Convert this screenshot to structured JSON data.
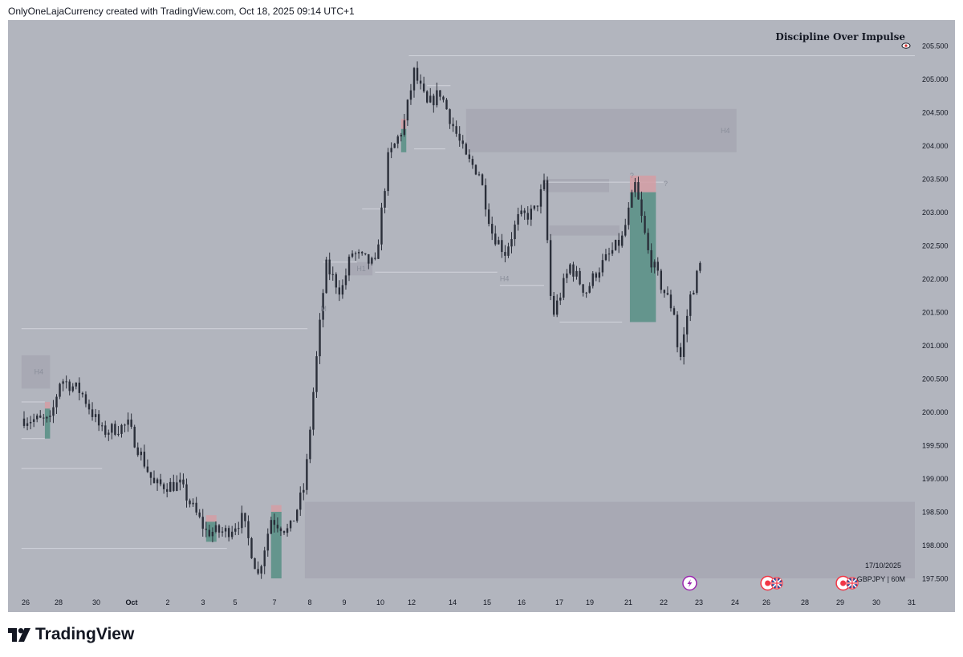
{
  "header": {
    "text": "OnlyOneLajaCurrency created with TradingView.com, Oct 18, 2025 09:14 UTC+1"
  },
  "watermark": "Discipline Over Impulse",
  "symbol_info": {
    "date": "17/10/2025",
    "symbol": "GBPJPY | 60M"
  },
  "footer": {
    "brand": "TradingView"
  },
  "colors": {
    "background": "#b2b5be",
    "candle": "#2a2e39",
    "zone": "#a4a6b0",
    "line": "#d1d4dc",
    "label": "#8a8e9a",
    "profit": "#5b9187",
    "loss": "#d49da4",
    "event_red": "#f23645",
    "event_purple": "#9c27b0"
  },
  "icons": {
    "eye": "eye-icon",
    "lightning": "lightning-icon",
    "event": "red-dot-event-icon",
    "flag": "uk-flag-icon",
    "logo": "tradingview-logo-icon"
  },
  "chart_data": {
    "type": "candlestick",
    "title": "",
    "xlabel": "",
    "ylabel": "",
    "ylim": [
      197.4,
      205.8
    ],
    "y_ticks": [
      "197.500",
      "198.000",
      "198.500",
      "199.000",
      "199.500",
      "200.000",
      "200.500",
      "201.000",
      "201.500",
      "202.000",
      "202.500",
      "203.000",
      "203.500",
      "204.000",
      "204.500",
      "205.000",
      "205.500"
    ],
    "x_ticks": [
      "26",
      "28",
      "30",
      "Oct",
      "2",
      "3",
      "5",
      "7",
      "8",
      "9",
      "10",
      "12",
      "14",
      "15",
      "16",
      "17",
      "19",
      "21",
      "22",
      "23",
      "24",
      "26",
      "28",
      "29",
      "30",
      "31"
    ],
    "price_path": [
      {
        "d": 0,
        "p": 199.9
      },
      {
        "d": 1,
        "p": 199.85
      },
      {
        "d": 1.4,
        "p": 200.5
      },
      {
        "d": 2.2,
        "p": 200.3
      },
      {
        "d": 3,
        "p": 199.7
      },
      {
        "d": 4,
        "p": 199.8
      },
      {
        "d": 5,
        "p": 198.9
      },
      {
        "d": 6,
        "p": 198.9
      },
      {
        "d": 7,
        "p": 198.2
      },
      {
        "d": 7.8,
        "p": 198.2
      },
      {
        "d": 8.4,
        "p": 198.4
      },
      {
        "d": 9,
        "p": 197.55
      },
      {
        "d": 9.5,
        "p": 198.4
      },
      {
        "d": 10.2,
        "p": 198.2
      },
      {
        "d": 10.8,
        "p": 198.9
      },
      {
        "d": 11.1,
        "p": 200.2
      },
      {
        "d": 11.6,
        "p": 202.2
      },
      {
        "d": 12.2,
        "p": 201.8
      },
      {
        "d": 12.6,
        "p": 202.4
      },
      {
        "d": 13,
        "p": 202.3
      },
      {
        "d": 13.5,
        "p": 202.2
      },
      {
        "d": 14,
        "p": 203.8
      },
      {
        "d": 14.6,
        "p": 204.3
      },
      {
        "d": 15,
        "p": 205.1
      },
      {
        "d": 15.5,
        "p": 204.6
      },
      {
        "d": 16,
        "p": 204.8
      },
      {
        "d": 16.5,
        "p": 204.3
      },
      {
        "d": 17,
        "p": 203.8
      },
      {
        "d": 17.5,
        "p": 203.6
      },
      {
        "d": 18,
        "p": 202.7
      },
      {
        "d": 18.5,
        "p": 202.4
      },
      {
        "d": 19,
        "p": 202.9
      },
      {
        "d": 19.6,
        "p": 203.0
      },
      {
        "d": 20,
        "p": 203.4
      },
      {
        "d": 20.3,
        "p": 201.4
      },
      {
        "d": 21,
        "p": 202.2
      },
      {
        "d": 21.6,
        "p": 201.8
      },
      {
        "d": 22,
        "p": 202.1
      },
      {
        "d": 22.6,
        "p": 202.4
      },
      {
        "d": 23,
        "p": 202.6
      },
      {
        "d": 23.5,
        "p": 203.4
      },
      {
        "d": 24,
        "p": 202.4
      },
      {
        "d": 24.5,
        "p": 201.9
      },
      {
        "d": 25,
        "p": 201.5
      },
      {
        "d": 25.2,
        "p": 200.7
      },
      {
        "d": 25.6,
        "p": 201.7
      },
      {
        "d": 26,
        "p": 202.2
      }
    ],
    "zones": [
      {
        "label": "H4",
        "d0": 17.0,
        "d1": 27.4,
        "y0": 203.9,
        "y1": 204.55
      },
      {
        "label": "H4",
        "d0": -0.1,
        "d1": 1.0,
        "y0": 200.35,
        "y1": 200.85
      },
      {
        "label": "",
        "d0": 10.8,
        "d1": 36.7,
        "y0": 197.5,
        "y1": 198.65
      },
      {
        "label": "",
        "d0": 20.0,
        "d1": 22.5,
        "y0": 203.3,
        "y1": 203.5
      },
      {
        "label": "",
        "d0": 20.2,
        "d1": 22.9,
        "y0": 202.65,
        "y1": 202.8
      },
      {
        "label": "H1",
        "d0": 12.5,
        "d1": 13.4,
        "y0": 202.05,
        "y1": 202.25
      }
    ],
    "levels": [
      {
        "d0": 14.8,
        "d1": 36.0,
        "y": 205.35
      },
      {
        "d0": 15.5,
        "d1": 16.4,
        "y": 204.9
      },
      {
        "d0": 15.0,
        "d1": 16.2,
        "y": 203.95
      },
      {
        "d0": 20.0,
        "d1": 24.6,
        "y": 203.45
      },
      {
        "d0": 13.0,
        "d1": 14.0,
        "y": 203.05
      },
      {
        "d0": 13.5,
        "d1": 18.2,
        "y": 202.1
      },
      {
        "d0": 18.3,
        "d1": 20.0,
        "y": 201.9
      },
      {
        "d0": 20.6,
        "d1": 23.0,
        "y": 201.35
      },
      {
        "d0": -0.1,
        "d1": 10.9,
        "y": 201.25
      },
      {
        "d0": -0.1,
        "d1": 0.8,
        "y": 200.15
      },
      {
        "d0": -0.1,
        "d1": 0.8,
        "y": 199.6
      },
      {
        "d0": -0.1,
        "d1": 3.0,
        "y": 199.15
      },
      {
        "d0": -0.1,
        "d1": 7.8,
        "y": 197.95
      },
      {
        "d0": 11.5,
        "d1": 12.8,
        "y": 202.25
      }
    ],
    "positions": [
      {
        "d0": 23.3,
        "d1": 24.3,
        "entry": 203.3,
        "stop": 203.55,
        "target": 201.35
      },
      {
        "d0": 9.5,
        "d1": 9.9,
        "entry": 198.5,
        "stop": 198.6,
        "target": 197.5
      },
      {
        "d0": 7.0,
        "d1": 7.4,
        "entry": 198.35,
        "stop": 198.45,
        "target": 198.05
      },
      {
        "d0": 0.8,
        "d1": 1.0,
        "entry": 200.05,
        "stop": 200.15,
        "target": 199.6
      },
      {
        "d0": 14.5,
        "d1": 14.7,
        "entry": 204.25,
        "stop": 204.4,
        "target": 203.9
      }
    ],
    "small_labels": [
      {
        "text": "?",
        "d": 24.6,
        "y": 203.43
      },
      {
        "text": "?",
        "d": 23.3,
        "y": 203.55
      },
      {
        "text": "H4",
        "d": 18.3,
        "y": 202.0
      },
      {
        "text": "M",
        "d": 11.4,
        "y": 201.55
      }
    ],
    "events": [
      {
        "type": "lightning",
        "d": 25.6
      },
      {
        "type": "red-dot",
        "d": 28.6
      },
      {
        "type": "flag",
        "d": 28.95
      },
      {
        "type": "red-dot",
        "d": 31.5
      },
      {
        "type": "flag",
        "d": 31.85
      }
    ]
  }
}
